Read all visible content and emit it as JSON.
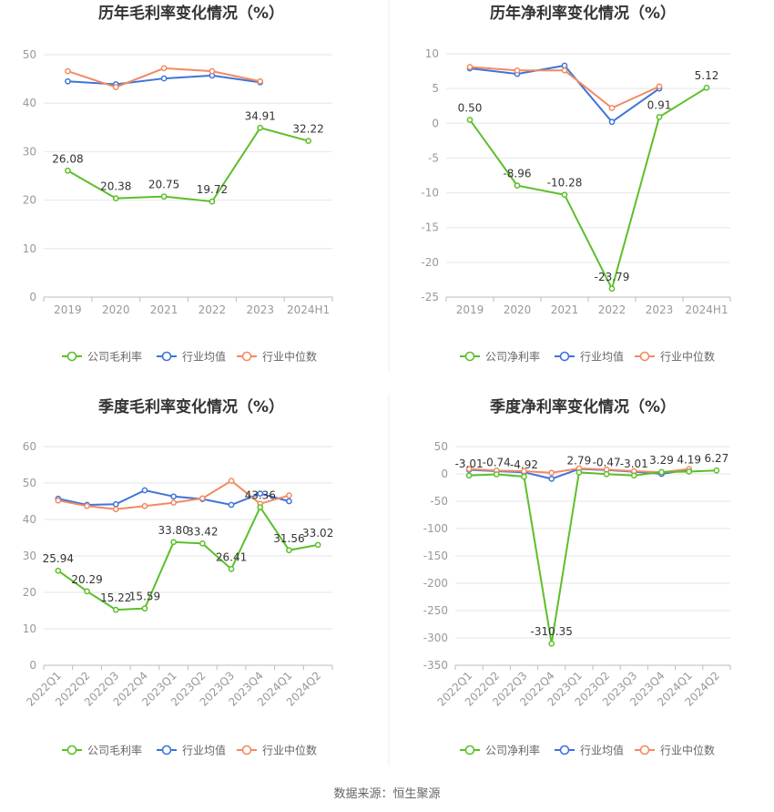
{
  "source": "数据来源：恒生聚源",
  "legend_labels": [
    "行业均值",
    "行业中位数"
  ],
  "colors": {
    "company": "#5cbf2a",
    "avg": "#3e74d8",
    "median": "#f28a63",
    "grid": "#e6e6e6",
    "axis": "#999999",
    "text": "#666666"
  },
  "chart_data": [
    {
      "type": "line",
      "title": "历年毛利率变化情况（%）",
      "categories": [
        "2019",
        "2020",
        "2021",
        "2022",
        "2023",
        "2024H1"
      ],
      "ylim": [
        0,
        50
      ],
      "yticks": [
        0,
        10,
        20,
        30,
        40,
        50
      ],
      "series": [
        {
          "name": "公司毛利率",
          "values": [
            26.08,
            20.38,
            20.75,
            19.72,
            34.91,
            32.22
          ],
          "labels": [
            "26.08",
            "20.38",
            "20.75",
            "19.72",
            "34.91",
            "32.22"
          ]
        },
        {
          "name": "行业均值",
          "values": [
            44.5,
            43.9,
            45.1,
            45.7,
            44.3,
            null
          ]
        },
        {
          "name": "行业中位数",
          "values": [
            46.6,
            43.3,
            47.2,
            46.6,
            44.5,
            null
          ]
        }
      ],
      "rotate_x": false
    },
    {
      "type": "line",
      "title": "历年净利率变化情况（%）",
      "categories": [
        "2019",
        "2020",
        "2021",
        "2022",
        "2023",
        "2024H1"
      ],
      "ylim": [
        -25,
        10
      ],
      "yticks": [
        -25,
        -20,
        -15,
        -10,
        -5,
        0,
        5,
        10
      ],
      "series": [
        {
          "name": "公司净利率",
          "values": [
            0.5,
            -8.96,
            -10.28,
            -23.79,
            0.91,
            5.12
          ],
          "labels": [
            "0.50",
            "-8.96",
            "-10.28",
            "-23.79",
            "0.91",
            "5.12"
          ]
        },
        {
          "name": "行业均值",
          "values": [
            7.9,
            7.1,
            8.3,
            0.2,
            5.0,
            null
          ]
        },
        {
          "name": "行业中位数",
          "values": [
            8.1,
            7.6,
            7.6,
            2.2,
            5.3,
            null
          ]
        }
      ],
      "rotate_x": false
    },
    {
      "type": "line",
      "title": "季度毛利率变化情况（%）",
      "categories": [
        "2022Q1",
        "2022Q2",
        "2022Q3",
        "2022Q4",
        "2023Q1",
        "2023Q2",
        "2023Q3",
        "2023Q4",
        "2024Q1",
        "2024Q2"
      ],
      "ylim": [
        0,
        60
      ],
      "yticks": [
        0,
        10,
        20,
        30,
        40,
        50,
        60
      ],
      "series": [
        {
          "name": "公司毛利率",
          "values": [
            25.94,
            20.29,
            15.22,
            15.59,
            33.8,
            33.42,
            26.41,
            43.36,
            31.56,
            33.02
          ],
          "labels": [
            "25.94",
            "20.29",
            "15.22",
            "15.59",
            "33.80",
            "33.42",
            "26.41",
            "43.36",
            "31.56",
            "33.02"
          ]
        },
        {
          "name": "行业均值",
          "values": [
            45.7,
            44.0,
            44.2,
            48.0,
            46.3,
            45.6,
            44.0,
            47.1,
            45.0,
            null
          ]
        },
        {
          "name": "行业中位数",
          "values": [
            45.2,
            43.7,
            42.8,
            43.7,
            44.6,
            45.8,
            50.6,
            44.3,
            46.6,
            null
          ]
        }
      ],
      "rotate_x": true
    },
    {
      "type": "line",
      "title": "季度净利率变化情况（%）",
      "categories": [
        "2022Q1",
        "2022Q2",
        "2022Q3",
        "2022Q4",
        "2023Q1",
        "2023Q2",
        "2023Q3",
        "2023Q4",
        "2024Q1",
        "2024Q2"
      ],
      "ylim": [
        -350,
        50
      ],
      "yticks": [
        -350,
        -300,
        -250,
        -200,
        -150,
        -100,
        -50,
        0,
        50
      ],
      "series": [
        {
          "name": "公司净利率",
          "values": [
            -3.01,
            -0.74,
            -4.92,
            -310.35,
            2.79,
            -0.47,
            -3.01,
            3.29,
            4.19,
            6.27
          ],
          "labels": [
            "-3.01",
            "-0.74",
            "-4.92",
            "-310.35",
            "2.79",
            "-0.47",
            "-3.01",
            "3.29",
            "4.19",
            "6.27"
          ]
        },
        {
          "name": "行业均值",
          "values": [
            7.5,
            5.0,
            3.0,
            -9.0,
            9.0,
            7.0,
            4.0,
            0.0,
            8.0,
            null
          ]
        },
        {
          "name": "行业中位数",
          "values": [
            9.0,
            6.0,
            5.0,
            2.0,
            10.0,
            8.0,
            5.0,
            3.0,
            9.0,
            null
          ]
        }
      ],
      "rotate_x": true
    }
  ]
}
